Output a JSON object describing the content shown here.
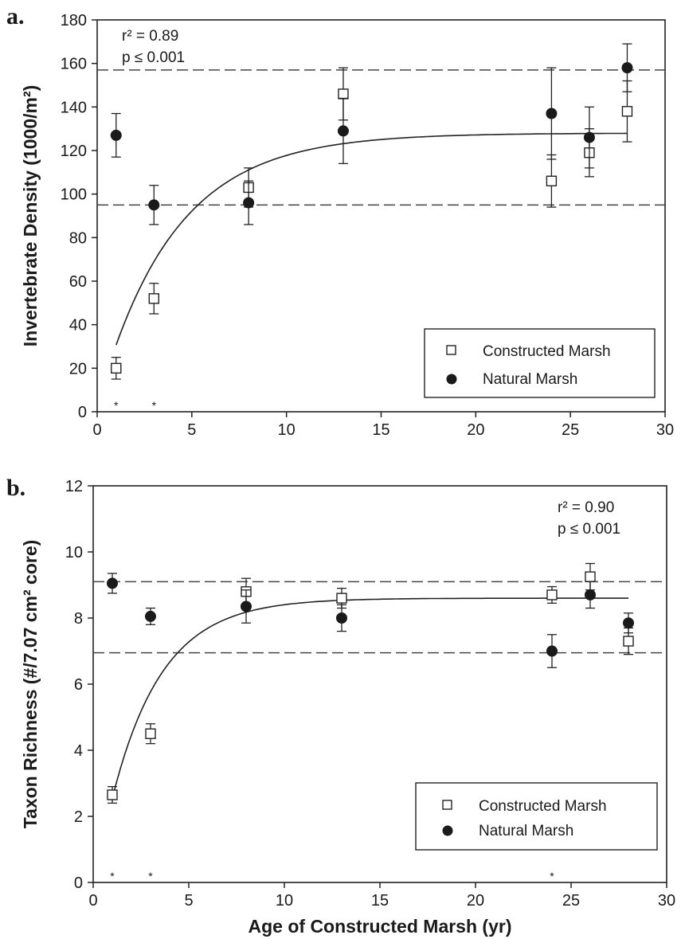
{
  "chart_data": [
    {
      "type": "scatter",
      "panel_label": "a.",
      "ylabel": "Invertebrate Density (1000/m²)",
      "xlim": [
        0,
        30
      ],
      "ylim": [
        0,
        180
      ],
      "x_ticks": [
        0,
        5,
        10,
        15,
        20,
        25,
        30
      ],
      "y_ticks": [
        0,
        20,
        40,
        60,
        80,
        100,
        120,
        140,
        160,
        180
      ],
      "stats": [
        "r² = 0.89",
        "p ≤ 0.001"
      ],
      "stats_position": "top-left",
      "legend_position": "bottom-right",
      "series": [
        {
          "name": "Constructed Marsh",
          "marker": "open-square",
          "points": [
            {
              "x": 1,
              "y": 20,
              "err": 5
            },
            {
              "x": 3,
              "y": 52,
              "err": 7
            },
            {
              "x": 8,
              "y": 103,
              "err": 9
            },
            {
              "x": 13,
              "y": 146,
              "err": 12
            },
            {
              "x": 24,
              "y": 106,
              "err": 12
            },
            {
              "x": 26,
              "y": 119,
              "err": 11
            },
            {
              "x": 28,
              "y": 138,
              "err": 14
            }
          ]
        },
        {
          "name": "Natural Marsh",
          "marker": "filled-circle",
          "points": [
            {
              "x": 1,
              "y": 127,
              "err": 10
            },
            {
              "x": 3,
              "y": 95,
              "err": 9
            },
            {
              "x": 8,
              "y": 96,
              "err": 10
            },
            {
              "x": 13,
              "y": 129,
              "err": 15
            },
            {
              "x": 24,
              "y": 137,
              "err": 21
            },
            {
              "x": 26,
              "y": 126,
              "err": 14
            },
            {
              "x": 28,
              "y": 158,
              "err": 11
            }
          ]
        }
      ],
      "fit_curve": {
        "asymptote": 128,
        "amplitude": 125,
        "rate": 0.25,
        "x_start": 1,
        "x_end": 28
      },
      "reference_lines": [
        157,
        95
      ],
      "significance_marks": [
        1,
        3
      ]
    },
    {
      "type": "scatter",
      "panel_label": "b.",
      "ylabel": "Taxon Richness (#/7.07 cm² core)",
      "xlabel": "Age of Constructed Marsh (yr)",
      "xlim": [
        0,
        30
      ],
      "ylim": [
        0,
        12
      ],
      "x_ticks": [
        0,
        5,
        10,
        15,
        20,
        25,
        30
      ],
      "y_ticks": [
        0,
        2,
        4,
        6,
        8,
        10,
        12
      ],
      "stats": [
        "r² = 0.90",
        "p ≤ 0.001"
      ],
      "stats_position": "top-right",
      "legend_position": "bottom-right",
      "series": [
        {
          "name": "Constructed Marsh",
          "marker": "open-square",
          "points": [
            {
              "x": 1,
              "y": 2.65,
              "err": 0.25
            },
            {
              "x": 3,
              "y": 4.5,
              "err": 0.3
            },
            {
              "x": 8,
              "y": 8.8,
              "err": 0.4
            },
            {
              "x": 13,
              "y": 8.6,
              "err": 0.3
            },
            {
              "x": 24,
              "y": 8.7,
              "err": 0.25
            },
            {
              "x": 26,
              "y": 9.25,
              "err": 0.4
            },
            {
              "x": 28,
              "y": 7.3,
              "err": 0.4
            }
          ]
        },
        {
          "name": "Natural Marsh",
          "marker": "filled-circle",
          "points": [
            {
              "x": 1,
              "y": 9.05,
              "err": 0.3
            },
            {
              "x": 3,
              "y": 8.05,
              "err": 0.25
            },
            {
              "x": 8,
              "y": 8.35,
              "err": 0.5
            },
            {
              "x": 13,
              "y": 8.0,
              "err": 0.4
            },
            {
              "x": 24,
              "y": 7.0,
              "err": 0.5
            },
            {
              "x": 26,
              "y": 8.7,
              "err": 0.4
            },
            {
              "x": 28,
              "y": 7.85,
              "err": 0.3
            }
          ]
        }
      ],
      "fit_curve": {
        "asymptote": 8.6,
        "amplitude": 8.85,
        "rate": 0.38,
        "x_start": 1,
        "x_end": 28
      },
      "reference_lines": [
        9.1,
        6.95
      ],
      "significance_marks": [
        1,
        3,
        24
      ]
    }
  ]
}
